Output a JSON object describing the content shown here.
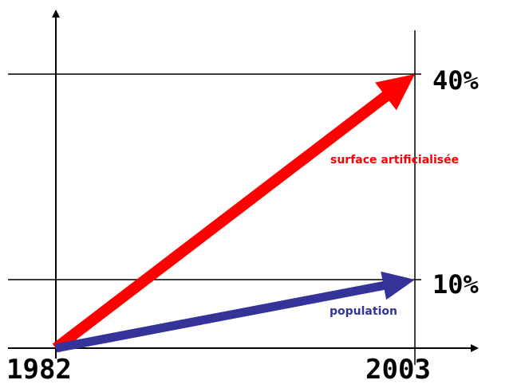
{
  "chart_data": {
    "type": "line",
    "x": [
      1982,
      2003
    ],
    "x_tick_labels": [
      "1982",
      "2003"
    ],
    "y_tick_labels": [
      "10%",
      "40%"
    ],
    "y_ticks": [
      10,
      40
    ],
    "ylim": [
      0,
      50
    ],
    "xlim": [
      1982,
      2003
    ],
    "grid": "horizontal lines at 10% and 40%, vertical line at 2003",
    "series": [
      {
        "name": "surface artificialisée",
        "color": "#ff0000",
        "values": [
          0,
          40
        ]
      },
      {
        "name": "population",
        "color": "#333399",
        "values": [
          0,
          10
        ]
      }
    ]
  }
}
